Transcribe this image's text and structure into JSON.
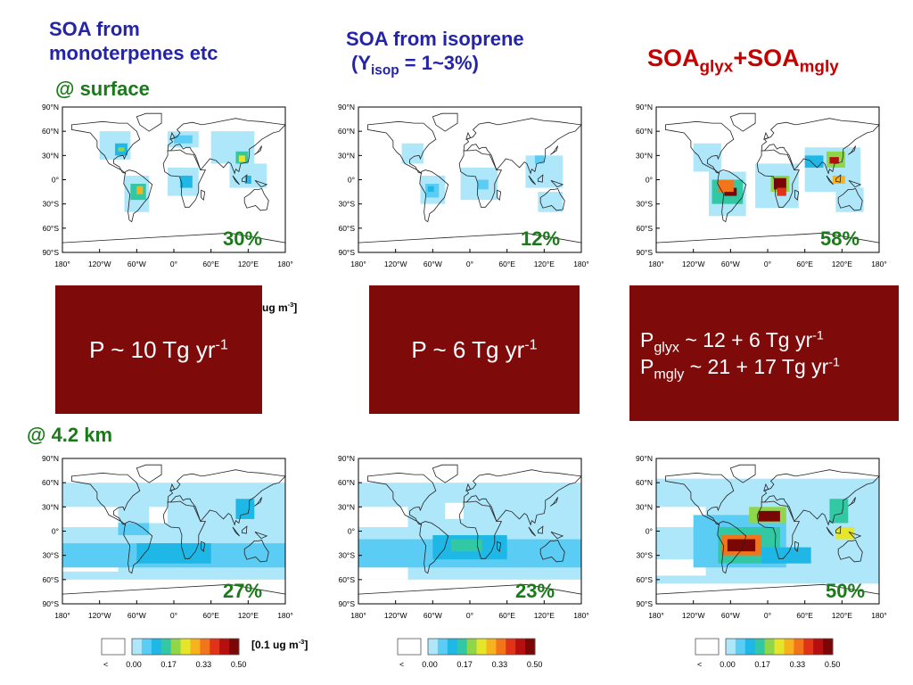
{
  "headers": {
    "col1_line1": "SOA from",
    "col1_line2": "monoterpenes etc",
    "col2_line1": "SOA from isoprene",
    "col2_line2_open": "(Y",
    "col2_line2_sub": "isop",
    "col2_line2_rest": " = 1~3%)",
    "col3_a": "SOA",
    "col3_a_sub": "glyx",
    "col3_plus": "+SOA",
    "col3_b_sub": "mgly"
  },
  "row_labels": {
    "surface": "@ surface",
    "altitude": "@ 4.2 km"
  },
  "percentages": {
    "surface": [
      "30%",
      "12%",
      "58%"
    ],
    "altitude": [
      "27%",
      "23%",
      "50%"
    ]
  },
  "production": {
    "box1_text": "P ~ 10 Tg yr",
    "box1_sup": "-1",
    "box2_text": "P ~ 6 Tg yr",
    "box2_sup": "-1",
    "box3_line1_p": "P",
    "box3_line1_sub": "glyx",
    "box3_line1_rest": " ~ 12 + 6 Tg yr",
    "box3_line1_sup": "-1",
    "box3_line2_p": "P",
    "box3_line2_sub": "mgly",
    "box3_line2_rest": " ~ 21 + 17 Tg yr",
    "box3_line2_sup": "-1"
  },
  "unit_notes": {
    "upper_text": "ug m",
    "upper_sup": "-3",
    "upper_close": "]",
    "lower_text": "[0.1 ug m",
    "lower_sup": "-3",
    "lower_close": "]"
  },
  "map_axes": {
    "lat_ticks": [
      "90°N",
      "60°N",
      "30°N",
      "0°",
      "30°S",
      "60°S",
      "90°S"
    ],
    "lon_ticks": [
      "180°",
      "120°W",
      "60°W",
      "0°",
      "60°E",
      "120°E",
      "180°"
    ]
  },
  "colorbar": {
    "less_than": "<",
    "ticks": [
      "0.00",
      "0.17",
      "0.33",
      "0.50"
    ],
    "colors": [
      "#aee6fa",
      "#5bcdf5",
      "#1fb8e6",
      "#33c8a4",
      "#8fd64b",
      "#e5e52a",
      "#f7b31d",
      "#f2741b",
      "#e03318",
      "#b50f0f",
      "#7a0606"
    ]
  }
}
